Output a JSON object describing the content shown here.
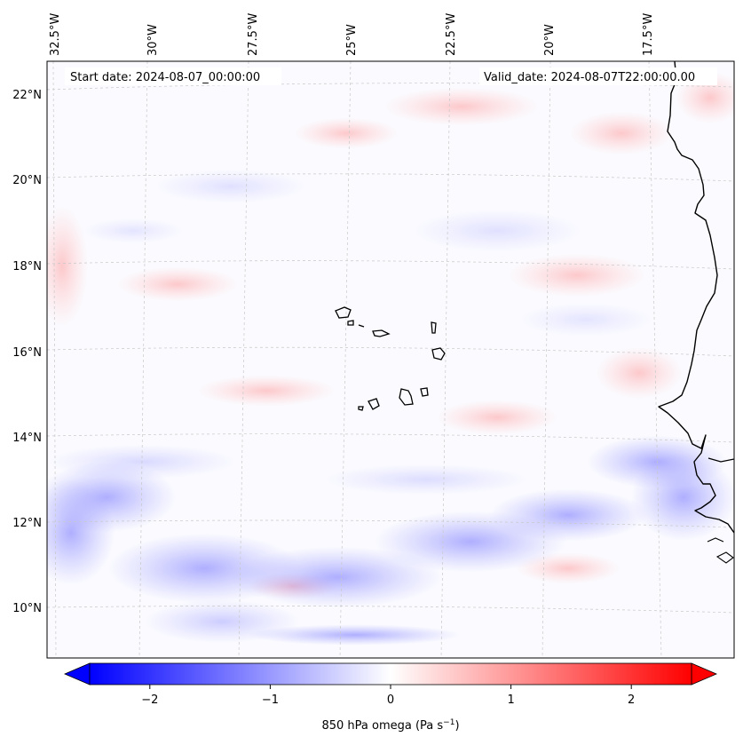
{
  "map": {
    "start_date": "Start date: 2024-08-07_00:00:00",
    "valid_date": "Valid_date: 2024-08-07T22:00:00.00",
    "lon_ticks": [
      "32.5°W",
      "30°W",
      "27.5°W",
      "25°W",
      "22.5°W",
      "20°W",
      "17.5°W"
    ],
    "lat_ticks": [
      "22°N",
      "20°N",
      "18°N",
      "16°N",
      "14°N",
      "12°N",
      "10°N"
    ],
    "extent": {
      "lon": [
        -33.3,
        -15.2
      ],
      "lat": [
        8.9,
        22.8
      ]
    },
    "gridlines": true,
    "variable": "850 hPa omega",
    "colormap": "bwr"
  },
  "colorbar": {
    "label_main": "850 hPa omega (Pa s",
    "label_exp": "−1",
    "label_end": ")",
    "ticks": [
      "−2",
      "−1",
      "0",
      "1",
      "2"
    ],
    "tick_values": [
      -2,
      -1,
      0,
      1,
      2
    ],
    "range": [
      -2.5,
      2.5
    ],
    "extend": "both",
    "colors": {
      "low": "#0000ff",
      "mid": "#ffffff",
      "high": "#ff0000"
    }
  }
}
